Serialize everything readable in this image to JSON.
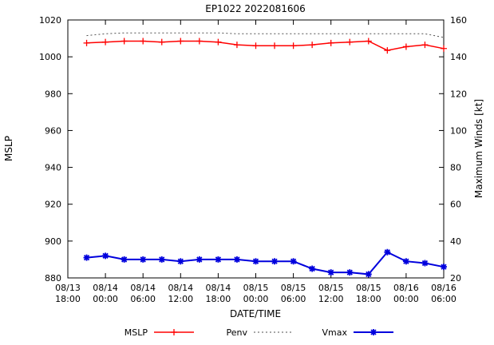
{
  "chart_data": {
    "type": "line",
    "title": "EP1022 2022081606",
    "xlabel": "DATE/TIME",
    "ylabel_left": "MSLP",
    "ylabel_right": "Maximum Winds [kt]",
    "x_range": [
      0,
      60
    ],
    "ylim_left": [
      880,
      1020
    ],
    "ylim_right": [
      20,
      160
    ],
    "y_ticks_left": [
      880,
      900,
      920,
      940,
      960,
      980,
      1000,
      1020
    ],
    "y_ticks_right": [
      20,
      40,
      60,
      80,
      100,
      120,
      140,
      160
    ],
    "x_ticks": [
      {
        "hour": 0,
        "date": "08/13",
        "time": "18:00"
      },
      {
        "hour": 6,
        "date": "08/14",
        "time": "00:00"
      },
      {
        "hour": 12,
        "date": "08/14",
        "time": "06:00"
      },
      {
        "hour": 18,
        "date": "08/14",
        "time": "12:00"
      },
      {
        "hour": 24,
        "date": "08/14",
        "time": "18:00"
      },
      {
        "hour": 30,
        "date": "08/15",
        "time": "00:00"
      },
      {
        "hour": 36,
        "date": "08/15",
        "time": "06:00"
      },
      {
        "hour": 42,
        "date": "08/15",
        "time": "12:00"
      },
      {
        "hour": 48,
        "date": "08/15",
        "time": "18:00"
      },
      {
        "hour": 54,
        "date": "08/16",
        "time": "00:00"
      },
      {
        "hour": 60,
        "date": "08/16",
        "time": "06:00"
      }
    ],
    "series": [
      {
        "name": "MSLP",
        "axis": "left",
        "color": "#ff0000",
        "marker": "plus",
        "line": "solid",
        "x_hours": [
          3,
          6,
          9,
          12,
          15,
          18,
          21,
          24,
          27,
          30,
          33,
          36,
          39,
          42,
          45,
          48,
          51,
          54,
          57,
          60
        ],
        "values": [
          1007.5,
          1008,
          1008.5,
          1008.5,
          1008,
          1008.5,
          1008.5,
          1008,
          1006.5,
          1006,
          1006,
          1006,
          1006.5,
          1007.5,
          1008,
          1008.5,
          1003.5,
          1005.5,
          1006.5,
          1004.5
        ]
      },
      {
        "name": "Penv",
        "axis": "left",
        "color": "#505050",
        "marker": "none",
        "line": "dotted",
        "x_hours": [
          3,
          6,
          9,
          12,
          15,
          18,
          21,
          24,
          27,
          30,
          33,
          36,
          39,
          42,
          45,
          48,
          51,
          54,
          57,
          60
        ],
        "values": [
          1011.5,
          1012.5,
          1013,
          1013,
          1013,
          1013,
          1013,
          1013,
          1012.5,
          1012.5,
          1012.5,
          1012.5,
          1012.5,
          1012.5,
          1012.5,
          1012.5,
          1012.5,
          1012.5,
          1012.5,
          1010.5
        ]
      },
      {
        "name": "Vmax",
        "axis": "right",
        "color": "#0000dd",
        "marker": "star",
        "line": "solid",
        "x_hours": [
          3,
          6,
          9,
          12,
          15,
          18,
          21,
          24,
          27,
          30,
          33,
          36,
          39,
          42,
          45,
          48,
          51,
          54,
          57,
          60
        ],
        "values": [
          31,
          32,
          30,
          30,
          30,
          29,
          30,
          30,
          30,
          29,
          29,
          29,
          25,
          23,
          23,
          22,
          34,
          29,
          28,
          26
        ]
      }
    ],
    "legend": [
      "MSLP",
      "Penv",
      "Vmax"
    ]
  }
}
